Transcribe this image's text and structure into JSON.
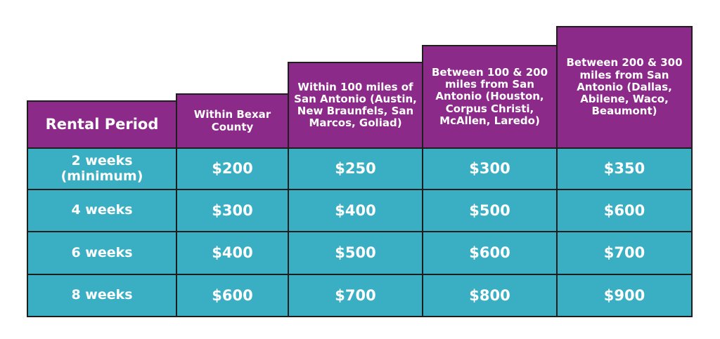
{
  "table": {
    "header": [
      "Rental Period",
      "Within Bexar County",
      "Within 100 miles of San Antonio (Austin, New Braunfels, San Marcos, Goliad)",
      "Between 100 & 200 miles from San Antonio (Houston, Corpus Christi, McAllen, Laredo)",
      "Between 200 & 300 miles from San Antonio (Dallas, Abilene, Waco, Beaumont)"
    ],
    "rows": [
      [
        "2 weeks (minimum)",
        "$200",
        "$250",
        "$300",
        "$350"
      ],
      [
        "4 weeks",
        "$300",
        "$400",
        "$500",
        "$600"
      ],
      [
        "6 weeks",
        "$400",
        "$500",
        "$600",
        "$700"
      ],
      [
        "8 weeks",
        "$600",
        "$700",
        "$800",
        "$900"
      ]
    ]
  }
}
